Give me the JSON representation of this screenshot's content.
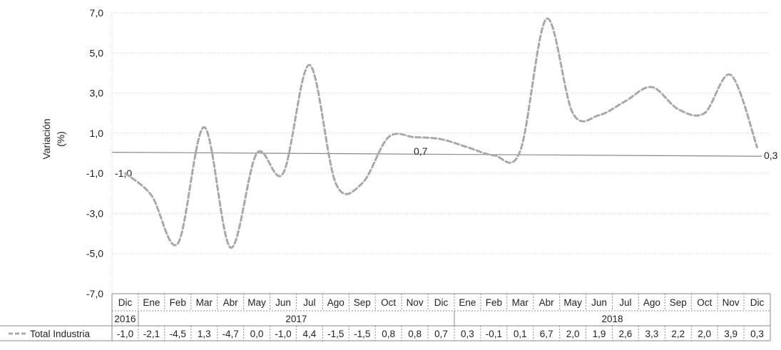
{
  "chart_data": {
    "type": "line",
    "ylabel": "Variación (%)",
    "ylim": [
      -7,
      7
    ],
    "yticks": [
      "7,0",
      "5,0",
      "3,0",
      "1,0",
      "-1,0",
      "-3,0",
      "-5,0",
      "-7,0"
    ],
    "months": [
      "Dic",
      "Ene",
      "Feb",
      "Mar",
      "Abr",
      "May",
      "Jun",
      "Jul",
      "Ago",
      "Sep",
      "Oct",
      "Nov",
      "Dic",
      "Ene",
      "Feb",
      "Mar",
      "Abr",
      "May",
      "Jun",
      "Jul",
      "Ago",
      "Sep",
      "Oct",
      "Nov",
      "Dic"
    ],
    "years": [
      {
        "label": "2016",
        "start": 0,
        "end": 0
      },
      {
        "label": "2017",
        "start": 1,
        "end": 12
      },
      {
        "label": "2018",
        "start": 13,
        "end": 24
      }
    ],
    "series": [
      {
        "name": "Total Industria",
        "values": [
          -1.0,
          -2.1,
          -4.5,
          1.3,
          -4.7,
          0.0,
          -1.0,
          4.4,
          -1.5,
          -1.5,
          0.8,
          0.8,
          0.7,
          0.3,
          -0.1,
          0.1,
          6.7,
          2.0,
          1.9,
          2.6,
          3.3,
          2.2,
          2.0,
          3.9,
          0.3
        ],
        "display": [
          "-1,0",
          "-2,1",
          "-4,5",
          "1,3",
          "-4,7",
          "0,0",
          "-1,0",
          "4,4",
          "-1,5",
          "-1,5",
          "0,8",
          "0,8",
          "0,7",
          "0,3",
          "-0,1",
          "0,1",
          "6,7",
          "2,0",
          "1,9",
          "2,6",
          "3,3",
          "2,2",
          "2,0",
          "3,9",
          "0,3"
        ],
        "color": "#a8a8a8"
      }
    ],
    "reference_line": {
      "from": "-1,0",
      "mid": "0,7",
      "to": "0,3"
    }
  }
}
